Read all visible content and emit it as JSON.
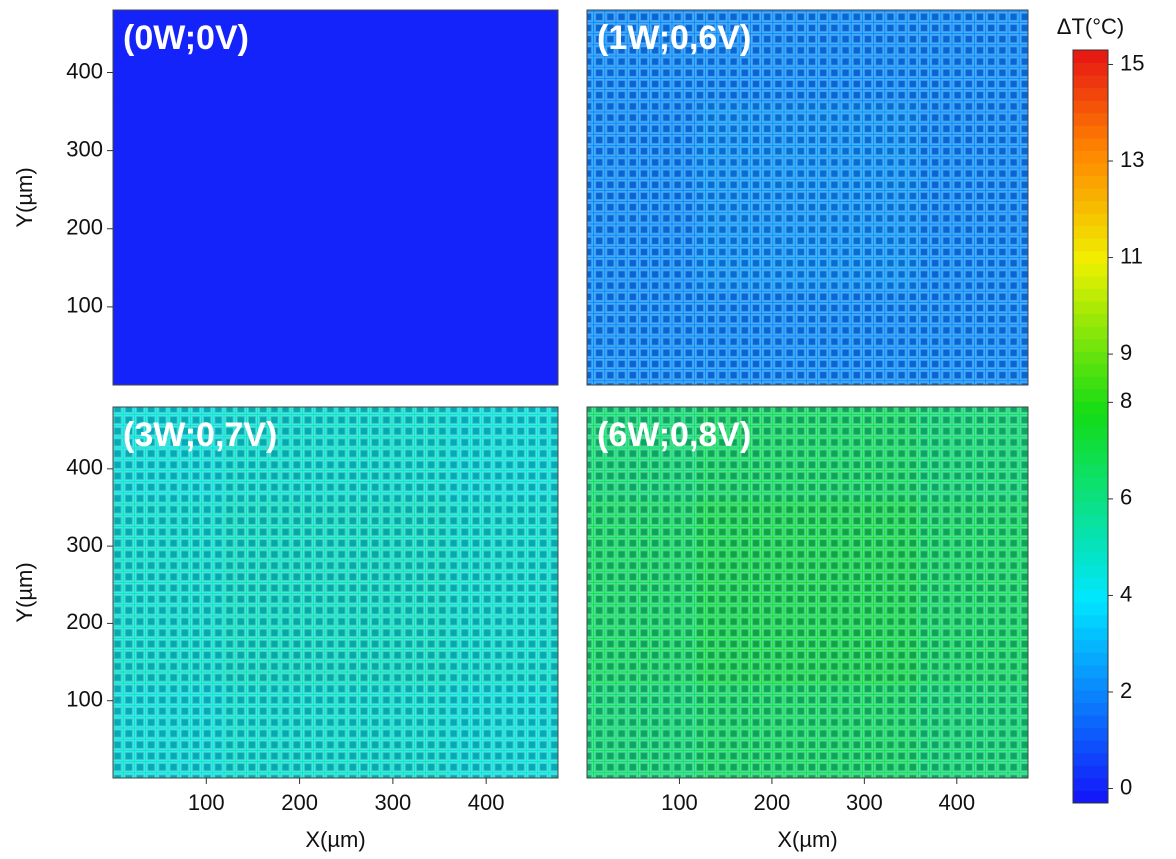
{
  "chart_data": [
    {
      "type": "heatmap",
      "title": "(0W;0V)",
      "ylabel": "Y(µm)",
      "xlim": [
        0,
        477
      ],
      "ylim": [
        0,
        480
      ],
      "yticks": [
        100,
        200,
        300,
        400
      ],
      "z": [
        [
          0,
          0,
          0,
          0
        ],
        [
          0,
          0,
          0,
          0
        ],
        [
          0,
          0,
          0,
          0
        ],
        [
          0,
          0,
          0,
          0
        ]
      ]
    },
    {
      "type": "heatmap",
      "title": "(1W;0,6V)",
      "xlim": [
        0,
        477
      ],
      "ylim": [
        0,
        480
      ],
      "z": [
        [
          2,
          2,
          2,
          2
        ],
        [
          2,
          2.2,
          2.2,
          2
        ],
        [
          2,
          2.2,
          2.2,
          2
        ],
        [
          2,
          2,
          2,
          2
        ]
      ]
    },
    {
      "type": "heatmap",
      "title": "(3W;0,7V)",
      "xlabel": "X(µm)",
      "ylabel": "Y(µm)",
      "xlim": [
        0,
        477
      ],
      "ylim": [
        0,
        480
      ],
      "xticks": [
        100,
        200,
        300,
        400
      ],
      "yticks": [
        100,
        200,
        300,
        400
      ],
      "z": [
        [
          4.6,
          4.8,
          4.8,
          4.6
        ],
        [
          4.8,
          5,
          5,
          4.8
        ],
        [
          4.8,
          5,
          5,
          4.8
        ],
        [
          4.6,
          4.8,
          4.8,
          4.6
        ]
      ]
    },
    {
      "type": "heatmap",
      "title": "(6W;0,8V)",
      "xlabel": "X(µm)",
      "xlim": [
        0,
        477
      ],
      "ylim": [
        0,
        480
      ],
      "xticks": [
        100,
        200,
        300,
        400
      ],
      "z": [
        [
          6.5,
          6.8,
          6.8,
          6.5
        ],
        [
          6.8,
          7.2,
          7.2,
          6.8
        ],
        [
          6.8,
          7.2,
          7.2,
          6.8
        ],
        [
          6.5,
          6.8,
          6.8,
          6.5
        ]
      ]
    }
  ],
  "colorbar": {
    "label": "ΔT(°C)",
    "zlim": [
      -0.3,
      15.3
    ],
    "zticks": [
      0,
      2,
      4,
      6,
      8,
      9,
      11,
      13,
      15
    ]
  }
}
